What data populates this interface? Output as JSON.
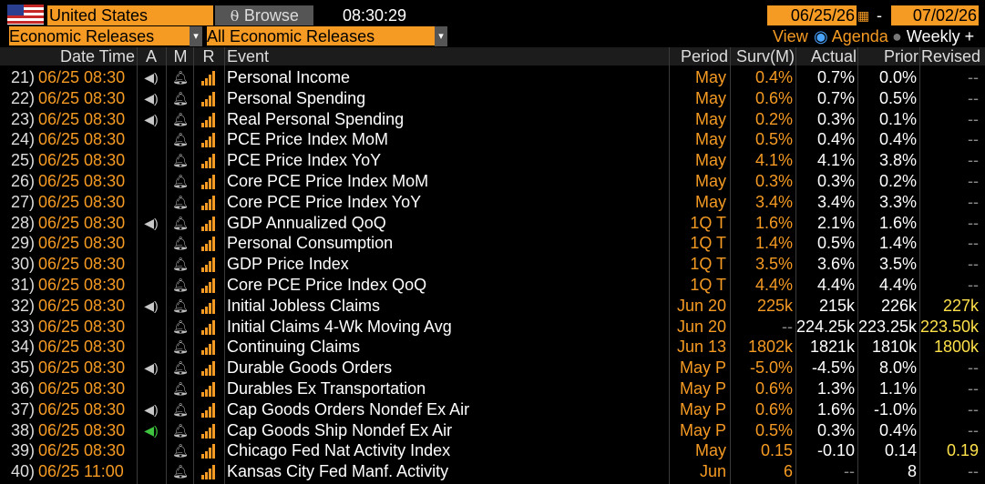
{
  "header": {
    "country": "United States",
    "browse": "Browse",
    "time": "08:30:29",
    "start_date": "06/25/26",
    "date_separator": "-",
    "end_date": "07/02/26"
  },
  "filters": {
    "category": "Economic Releases",
    "subcategory": "All Economic Releases",
    "view_label": "View",
    "agenda": "Agenda",
    "weekly": "Weekly"
  },
  "table": {
    "columns": [
      "Date Time",
      "A",
      "M",
      "R",
      "Event",
      "Period",
      "Surv(M)",
      "Actual",
      "Prior",
      "Revised"
    ],
    "rows": [
      {
        "no": "21)",
        "date": "06/25 08:30",
        "audio": "#c8c8c8",
        "event": "Personal Income",
        "period": "May",
        "surv": "0.4%",
        "actual": "0.7%",
        "prior": "0.0%",
        "revised": "--"
      },
      {
        "no": "22)",
        "date": "06/25 08:30",
        "audio": "#c8c8c8",
        "event": "Personal Spending",
        "period": "May",
        "surv": "0.6%",
        "actual": "0.7%",
        "prior": "0.5%",
        "revised": "--"
      },
      {
        "no": "23)",
        "date": "06/25 08:30",
        "audio": "#c8c8c8",
        "event": "Real Personal Spending",
        "period": "May",
        "surv": "0.2%",
        "actual": "0.3%",
        "prior": "0.1%",
        "revised": "--"
      },
      {
        "no": "24)",
        "date": "06/25 08:30",
        "audio": null,
        "event": "PCE Price Index MoM",
        "period": "May",
        "surv": "0.5%",
        "actual": "0.4%",
        "prior": "0.4%",
        "revised": "--"
      },
      {
        "no": "25)",
        "date": "06/25 08:30",
        "audio": null,
        "event": "PCE Price Index YoY",
        "period": "May",
        "surv": "4.1%",
        "actual": "4.1%",
        "prior": "3.8%",
        "revised": "--"
      },
      {
        "no": "26)",
        "date": "06/25 08:30",
        "audio": null,
        "event": "Core PCE Price Index MoM",
        "period": "May",
        "surv": "0.3%",
        "actual": "0.3%",
        "prior": "0.2%",
        "revised": "--"
      },
      {
        "no": "27)",
        "date": "06/25 08:30",
        "audio": null,
        "event": "Core PCE Price Index YoY",
        "period": "May",
        "surv": "3.4%",
        "actual": "3.4%",
        "prior": "3.3%",
        "revised": "--"
      },
      {
        "no": "28)",
        "date": "06/25 08:30",
        "audio": "#c8c8c8",
        "event": "GDP Annualized QoQ",
        "period": "1Q T",
        "surv": "1.6%",
        "actual": "2.1%",
        "prior": "1.6%",
        "revised": "--"
      },
      {
        "no": "29)",
        "date": "06/25 08:30",
        "audio": null,
        "event": "Personal Consumption",
        "period": "1Q T",
        "surv": "1.4%",
        "actual": "0.5%",
        "prior": "1.4%",
        "revised": "--"
      },
      {
        "no": "30)",
        "date": "06/25 08:30",
        "audio": null,
        "event": "GDP Price Index",
        "period": "1Q T",
        "surv": "3.5%",
        "actual": "3.6%",
        "prior": "3.5%",
        "revised": "--"
      },
      {
        "no": "31)",
        "date": "06/25 08:30",
        "audio": null,
        "event": "Core PCE Price Index QoQ",
        "period": "1Q T",
        "surv": "4.4%",
        "actual": "4.4%",
        "prior": "4.4%",
        "revised": "--"
      },
      {
        "no": "32)",
        "date": "06/25 08:30",
        "audio": "#c8c8c8",
        "event": "Initial Jobless Claims",
        "period": "Jun 20",
        "surv": "225k",
        "actual": "215k",
        "prior": "226k",
        "revised": "227k"
      },
      {
        "no": "33)",
        "date": "06/25 08:30",
        "audio": null,
        "event": "Initial Claims 4-Wk Moving Avg",
        "period": "Jun 20",
        "surv": "--",
        "actual": "224.25k",
        "prior": "223.25k",
        "revised": "223.50k"
      },
      {
        "no": "34)",
        "date": "06/25 08:30",
        "audio": null,
        "event": "Continuing Claims",
        "period": "Jun 13",
        "surv": "1802k",
        "actual": "1821k",
        "prior": "1810k",
        "revised": "1800k"
      },
      {
        "no": "35)",
        "date": "06/25 08:30",
        "audio": "#c8c8c8",
        "event": "Durable Goods Orders",
        "period": "May P",
        "surv": "-5.0%",
        "actual": "-4.5%",
        "prior": "8.0%",
        "revised": "--"
      },
      {
        "no": "36)",
        "date": "06/25 08:30",
        "audio": null,
        "event": "Durables Ex Transportation",
        "period": "May P",
        "surv": "0.6%",
        "actual": "1.3%",
        "prior": "1.1%",
        "revised": "--"
      },
      {
        "no": "37)",
        "date": "06/25 08:30",
        "audio": "#c8c8c8",
        "event": "Cap Goods Orders Nondef Ex Air",
        "period": "May P",
        "surv": "0.6%",
        "actual": "1.6%",
        "prior": "-1.0%",
        "revised": "--"
      },
      {
        "no": "38)",
        "date": "06/25 08:30",
        "audio": "#3ec43e",
        "event": "Cap Goods Ship Nondef Ex Air",
        "period": "May P",
        "surv": "0.5%",
        "actual": "0.3%",
        "prior": "0.4%",
        "revised": "--"
      },
      {
        "no": "39)",
        "date": "06/25 08:30",
        "audio": null,
        "event": "Chicago Fed Nat Activity Index",
        "period": "May",
        "surv": "0.15",
        "actual": "-0.10",
        "prior": "0.14",
        "revised": "0.19"
      },
      {
        "no": "40)",
        "date": "06/25 11:00",
        "audio": null,
        "event": "Kansas City Fed Manf. Activity",
        "period": "Jun",
        "surv": "6",
        "actual": "--",
        "prior": "8",
        "revised": "--"
      }
    ]
  }
}
